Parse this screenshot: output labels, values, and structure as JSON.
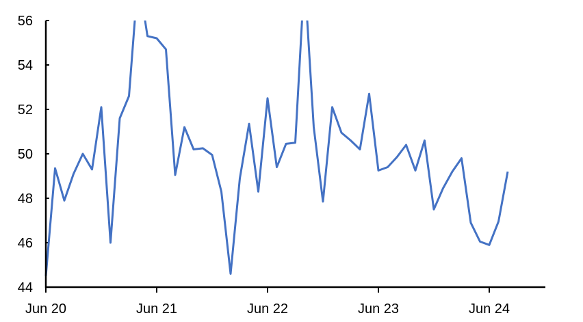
{
  "chart_data": {
    "type": "line",
    "title": "",
    "xlabel": "",
    "ylabel": "",
    "ylim": [
      44,
      56
    ],
    "yticks": [
      "44",
      "46",
      "48",
      "50",
      "52",
      "54",
      "56"
    ],
    "xticks": [
      {
        "label": "Jun 20",
        "month_index": 0
      },
      {
        "label": "Jun 21",
        "month_index": 12
      },
      {
        "label": "Jun 22",
        "month_index": 24
      },
      {
        "label": "Jun 23",
        "month_index": 36
      },
      {
        "label": "Jun 24",
        "month_index": 48
      }
    ],
    "grid": false,
    "line_color": "#4472C4",
    "series": [
      {
        "x": [
          "Jun 20",
          "Jul 20",
          "Aug 20",
          "Sep 20",
          "Oct 20",
          "Nov 20",
          "Dec 20",
          "Jan 21",
          "Feb 21",
          "Mar 21",
          "Apr 21",
          "May 21",
          "Jun 21",
          "Jul 21",
          "Aug 21",
          "Sep 21",
          "Oct 21",
          "Nov 21",
          "Dec 21",
          "Jan 22",
          "Feb 22",
          "Mar 22",
          "Apr 22",
          "May 22",
          "Jun 22",
          "Jul 22",
          "Aug 22",
          "Sep 22",
          "Oct 22",
          "Nov 22",
          "Dec 22",
          "Jan 23",
          "Feb 23",
          "Mar 23",
          "Apr 23",
          "May 23",
          "Jun 23",
          "Jul 23",
          "Aug 23",
          "Sep 23",
          "Oct 23",
          "Nov 23",
          "Dec 23",
          "Jan 24",
          "Feb 24",
          "Mar 24",
          "Apr 24",
          "May 24",
          "Jun 24",
          "Jul 24",
          "Aug 24"
        ],
        "values": [
          44.5,
          49.35,
          47.9,
          49.1,
          50.0,
          49.3,
          52.1,
          46.0,
          51.6,
          52.6,
          58.0,
          55.3,
          55.2,
          54.7,
          49.05,
          51.2,
          50.2,
          50.25,
          49.95,
          48.3,
          44.6,
          48.9,
          51.35,
          48.3,
          52.5,
          49.4,
          50.45,
          50.5,
          58.0,
          51.2,
          47.85,
          52.1,
          50.95,
          50.6,
          50.2,
          52.7,
          49.25,
          49.4,
          49.85,
          50.4,
          49.25,
          50.6,
          47.5,
          48.45,
          49.2,
          49.8,
          46.9,
          46.05,
          45.9,
          46.95,
          49.2
        ]
      }
    ]
  }
}
